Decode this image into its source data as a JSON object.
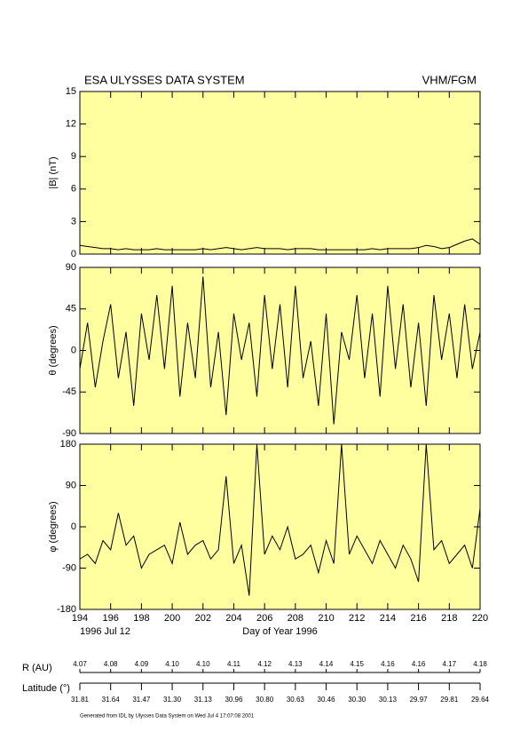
{
  "header": {
    "left": "ESA ULYSSES DATA SYSTEM",
    "right": "VHM/FGM"
  },
  "chart_data": [
    {
      "type": "line",
      "ylabel": "|B| (nT)",
      "ylim": [
        0,
        15
      ],
      "yticks": [
        0,
        3,
        6,
        9,
        12,
        15
      ],
      "xlim": [
        194,
        220
      ],
      "xticks": [
        194,
        196,
        198,
        200,
        202,
        204,
        206,
        208,
        210,
        212,
        214,
        216,
        218,
        220
      ],
      "background": "#ffffa0",
      "color": "#000000",
      "x": [
        194,
        194.5,
        195,
        195.5,
        196,
        196.5,
        197,
        197.5,
        198,
        198.5,
        199,
        199.5,
        200,
        200.5,
        201,
        201.5,
        202,
        202.5,
        203,
        203.5,
        204,
        204.5,
        205,
        205.5,
        206,
        206.5,
        207,
        207.5,
        208,
        208.5,
        209,
        209.5,
        210,
        210.5,
        211,
        211.5,
        212,
        212.5,
        213,
        213.5,
        214,
        214.5,
        215,
        215.5,
        216,
        216.5,
        217,
        217.5,
        218,
        218.5,
        219,
        219.5,
        220
      ],
      "values": [
        0.8,
        0.7,
        0.6,
        0.5,
        0.5,
        0.4,
        0.5,
        0.4,
        0.4,
        0.4,
        0.5,
        0.4,
        0.4,
        0.4,
        0.4,
        0.4,
        0.5,
        0.4,
        0.5,
        0.6,
        0.5,
        0.4,
        0.5,
        0.6,
        0.5,
        0.5,
        0.5,
        0.4,
        0.5,
        0.5,
        0.5,
        0.4,
        0.4,
        0.4,
        0.4,
        0.4,
        0.4,
        0.4,
        0.5,
        0.4,
        0.5,
        0.5,
        0.5,
        0.5,
        0.6,
        0.8,
        0.7,
        0.5,
        0.6,
        0.9,
        1.2,
        1.4,
        0.9
      ]
    },
    {
      "type": "line",
      "ylabel": "θ (degrees)",
      "ylim": [
        -90,
        90
      ],
      "yticks": [
        -90,
        -45,
        0,
        45,
        90
      ],
      "xlim": [
        194,
        220
      ],
      "xticks": [
        194,
        196,
        198,
        200,
        202,
        204,
        206,
        208,
        210,
        212,
        214,
        216,
        218,
        220
      ],
      "background": "#ffffa0",
      "color": "#000000",
      "x": [
        194,
        194.5,
        195,
        195.5,
        196,
        196.5,
        197,
        197.5,
        198,
        198.5,
        199,
        199.5,
        200,
        200.5,
        201,
        201.5,
        202,
        202.5,
        203,
        203.5,
        204,
        204.5,
        205,
        205.5,
        206,
        206.5,
        207,
        207.5,
        208,
        208.5,
        209,
        209.5,
        210,
        210.5,
        211,
        211.5,
        212,
        212.5,
        213,
        213.5,
        214,
        214.5,
        215,
        215.5,
        216,
        216.5,
        217,
        217.5,
        218,
        218.5,
        219,
        219.5,
        220
      ],
      "values": [
        -20,
        30,
        -40,
        10,
        50,
        -30,
        20,
        -60,
        40,
        -10,
        60,
        -20,
        70,
        -50,
        30,
        -30,
        80,
        -40,
        20,
        -70,
        40,
        -10,
        30,
        -50,
        60,
        -20,
        50,
        -40,
        70,
        -30,
        10,
        -60,
        40,
        -80,
        20,
        -10,
        60,
        -30,
        40,
        -50,
        70,
        -20,
        50,
        -40,
        30,
        -60,
        60,
        -10,
        40,
        -30,
        50,
        -20,
        20
      ]
    },
    {
      "type": "line",
      "ylabel": "φ (degrees)",
      "ylim": [
        -180,
        180
      ],
      "yticks": [
        -180,
        -90,
        0,
        90,
        180
      ],
      "xlim": [
        194,
        220
      ],
      "xticks": [
        194,
        196,
        198,
        200,
        202,
        204,
        206,
        208,
        210,
        212,
        214,
        216,
        218,
        220
      ],
      "xlabel": "Day of Year 1996",
      "start_date": "1996 Jul 12",
      "background": "#ffffa0",
      "color": "#000000",
      "x": [
        194,
        194.5,
        195,
        195.5,
        196,
        196.5,
        197,
        197.5,
        198,
        198.5,
        199,
        199.5,
        200,
        200.5,
        201,
        201.5,
        202,
        202.5,
        203,
        203.5,
        204,
        204.5,
        205,
        205.5,
        206,
        206.5,
        207,
        207.5,
        208,
        208.5,
        209,
        209.5,
        210,
        210.5,
        211,
        211.5,
        212,
        212.5,
        213,
        213.5,
        214,
        214.5,
        215,
        215.5,
        216,
        216.5,
        217,
        217.5,
        218,
        218.5,
        219,
        219.5,
        220
      ],
      "values": [
        -70,
        -60,
        -80,
        -30,
        -50,
        30,
        -40,
        -20,
        -90,
        -60,
        -50,
        -40,
        -80,
        10,
        -60,
        -40,
        -30,
        -70,
        -50,
        110,
        -80,
        -40,
        -150,
        180,
        -60,
        -20,
        -50,
        0,
        -70,
        -60,
        -40,
        -100,
        -30,
        -80,
        180,
        -60,
        -20,
        -50,
        -80,
        -30,
        -60,
        -90,
        -40,
        -70,
        -120,
        180,
        -50,
        -30,
        -80,
        -60,
        -40,
        -90,
        40
      ]
    }
  ],
  "ephemeris": [
    {
      "label": "R (AU)",
      "values": [
        "4.07",
        "4.08",
        "4.09",
        "4.10",
        "4.10",
        "4.11",
        "4.12",
        "4.13",
        "4.14",
        "4.15",
        "4.16",
        "4.16",
        "4.17",
        "4.18"
      ]
    },
    {
      "label": "Latitude (°)",
      "values": [
        "31.81",
        "31.64",
        "31.47",
        "31.30",
        "31.13",
        "30.96",
        "30.80",
        "30.63",
        "30.46",
        "30.30",
        "30.13",
        "29.97",
        "29.81",
        "29.64"
      ]
    }
  ],
  "footer": "Generated from IDL by Ulysses Data System on Wed Jul  4 17:07:08 2001"
}
